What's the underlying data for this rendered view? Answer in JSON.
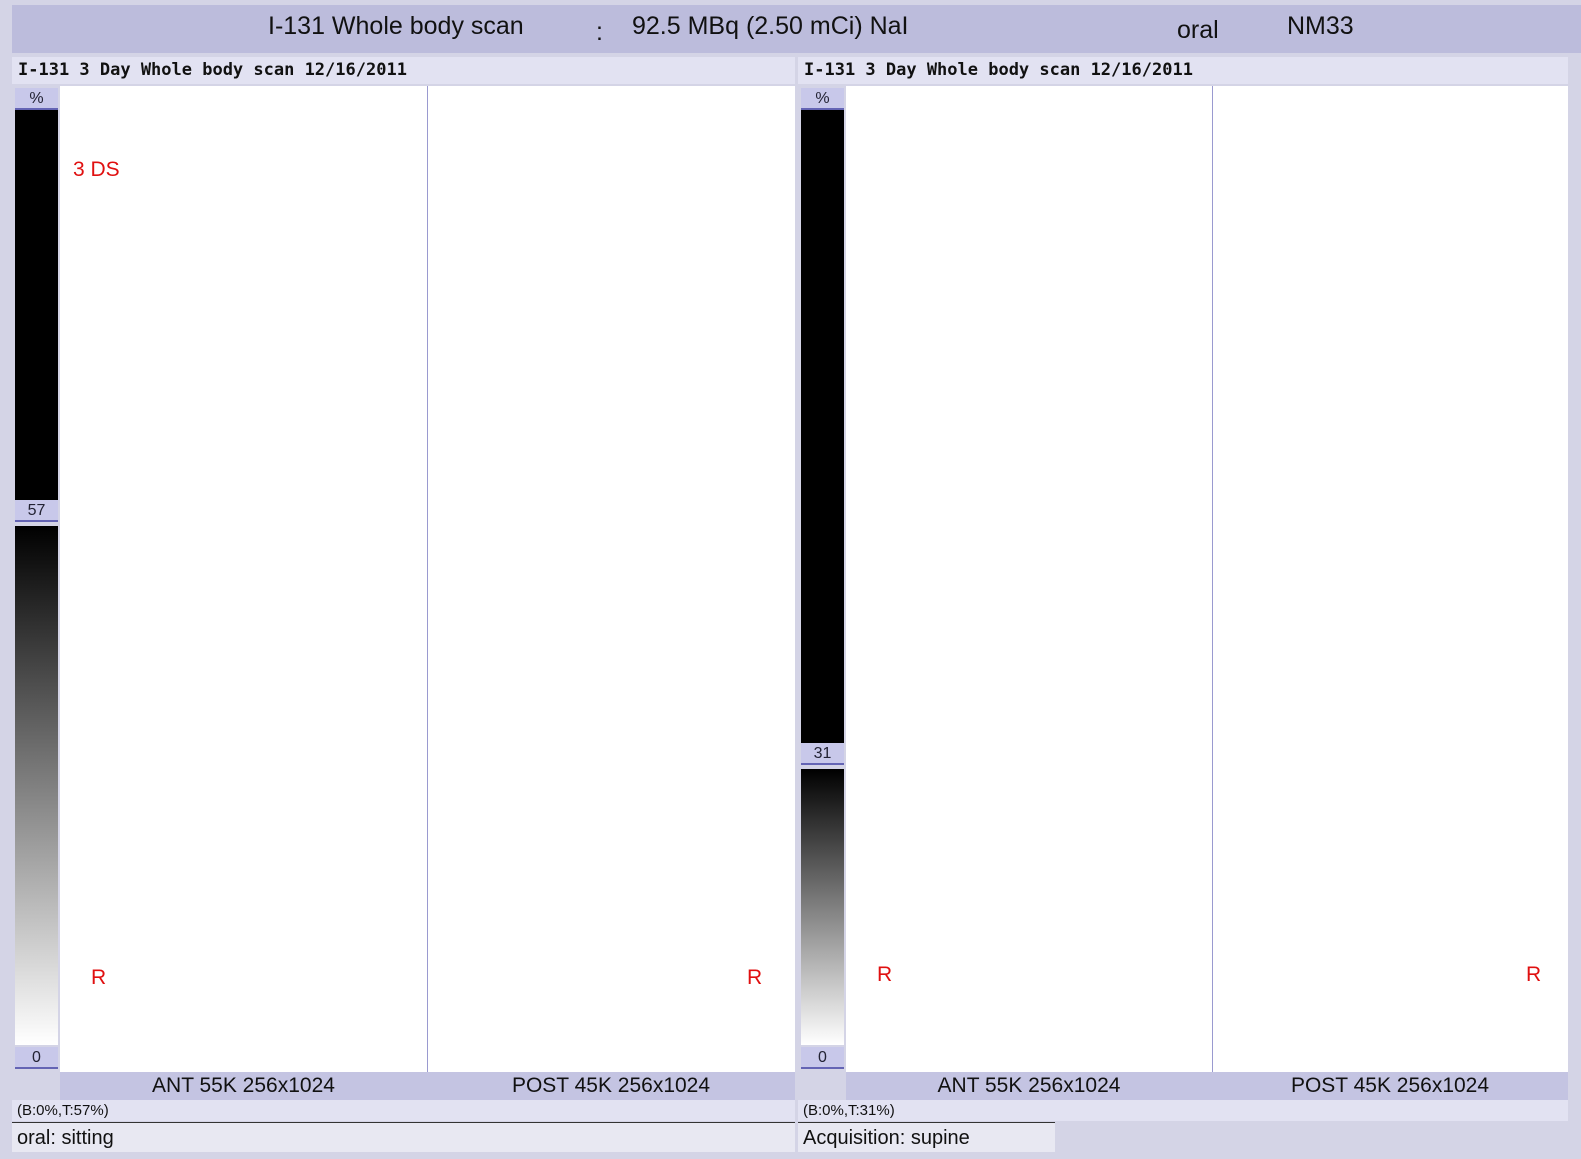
{
  "header": {
    "title": "I-131 Whole body scan",
    "separator": ":",
    "dose": "92.5 MBq (2.50 mCi) NaI",
    "route": "oral",
    "code": "NM33"
  },
  "panels": [
    {
      "title": "I-131 3 Day Whole body scan 12/16/2011",
      "scale": {
        "unit": "%",
        "top": 57,
        "bottom": 0
      },
      "label": "3 DS",
      "views": [
        {
          "marker": "R",
          "caption": "ANT 55K 256x1024"
        },
        {
          "marker": "R",
          "caption": "POST 45K 256x1024"
        }
      ],
      "window": "(B:0%,T:57%)",
      "footer": "oral: sitting"
    },
    {
      "title": "I-131 3 Day Whole body scan 12/16/2011",
      "scale": {
        "unit": "%",
        "top": 31,
        "bottom": 0
      },
      "views": [
        {
          "marker": "R",
          "caption": "ANT 55K 256x1024"
        },
        {
          "marker": "R",
          "caption": "POST 45K 256x1024"
        }
      ],
      "window": "(B:0%,T:31%)",
      "footer": "Acquisition: supine"
    }
  ]
}
